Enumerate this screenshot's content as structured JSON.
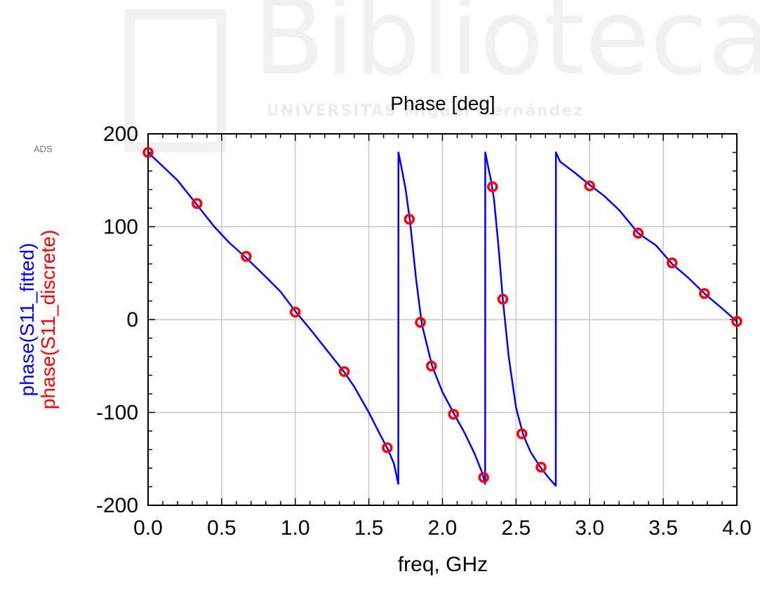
{
  "watermark": {
    "word": "Biblioteca",
    "subtitle": "UNIVERSITAS Miguel Hernández"
  },
  "app_badge": "ADS",
  "chart_data": {
    "type": "line",
    "title": "Phase [deg]",
    "xlabel": "freq, GHz",
    "ylabels": [
      {
        "text": "phase(S11_fitted)",
        "color": "#0000ff"
      },
      {
        "text": "phase(S11_discrete)",
        "color": "#ff0000"
      }
    ],
    "xlim": [
      0.0,
      4.0
    ],
    "ylim": [
      -200,
      200
    ],
    "x_ticks": [
      "0.0",
      "0.5",
      "1.0",
      "1.5",
      "2.0",
      "2.5",
      "3.0",
      "3.5",
      "4.0"
    ],
    "y_ticks": [
      "-200",
      "-100",
      "0",
      "100",
      "200"
    ],
    "grid": true,
    "series": [
      {
        "name": "phase(S11_fitted)",
        "color": "#0000ff",
        "style": "line",
        "x": [
          0.0,
          0.1,
          0.2,
          0.33,
          0.45,
          0.55,
          0.67,
          0.8,
          0.9,
          1.0,
          1.1,
          1.2,
          1.33,
          1.4,
          1.5,
          1.58,
          1.63,
          1.67,
          1.7,
          1.701,
          1.72,
          1.75,
          1.78,
          1.82,
          1.86,
          1.93,
          2.0,
          2.08,
          2.15,
          2.22,
          2.27,
          2.29,
          2.291,
          2.31,
          2.33,
          2.35,
          2.38,
          2.41,
          2.45,
          2.5,
          2.55,
          2.6,
          2.67,
          2.73,
          2.77,
          2.771,
          2.8,
          2.9,
          3.0,
          3.1,
          3.2,
          3.33,
          3.45,
          3.56,
          3.67,
          3.78,
          3.9,
          4.0
        ],
        "y": [
          180,
          165,
          150,
          124,
          100,
          83,
          66,
          46,
          30,
          9,
          -10,
          -30,
          -56,
          -72,
          -100,
          -125,
          -140,
          -155,
          -177,
          180,
          165,
          140,
          105,
          45,
          -5,
          -50,
          -78,
          -102,
          -122,
          -145,
          -165,
          -177,
          180,
          165,
          150,
          130,
          80,
          22,
          -40,
          -95,
          -125,
          -143,
          -160,
          -172,
          -179,
          180,
          170,
          158,
          145,
          133,
          118,
          93,
          80,
          60,
          45,
          28,
          12,
          -2
        ]
      },
      {
        "name": "phase(S11_discrete)",
        "color": "#ff0000",
        "style": "circle",
        "x": [
          0.0,
          0.333,
          0.667,
          1.0,
          1.333,
          1.625,
          1.775,
          1.85,
          1.925,
          2.075,
          2.28,
          2.34,
          2.41,
          2.54,
          2.67,
          3.0,
          3.33,
          3.56,
          3.78,
          4.0
        ],
        "y": [
          180,
          125,
          68,
          8,
          -56,
          -138,
          108,
          -3,
          -50,
          -102,
          -170,
          143,
          22,
          -123,
          -159,
          144,
          93,
          61,
          28,
          -2
        ]
      }
    ]
  }
}
